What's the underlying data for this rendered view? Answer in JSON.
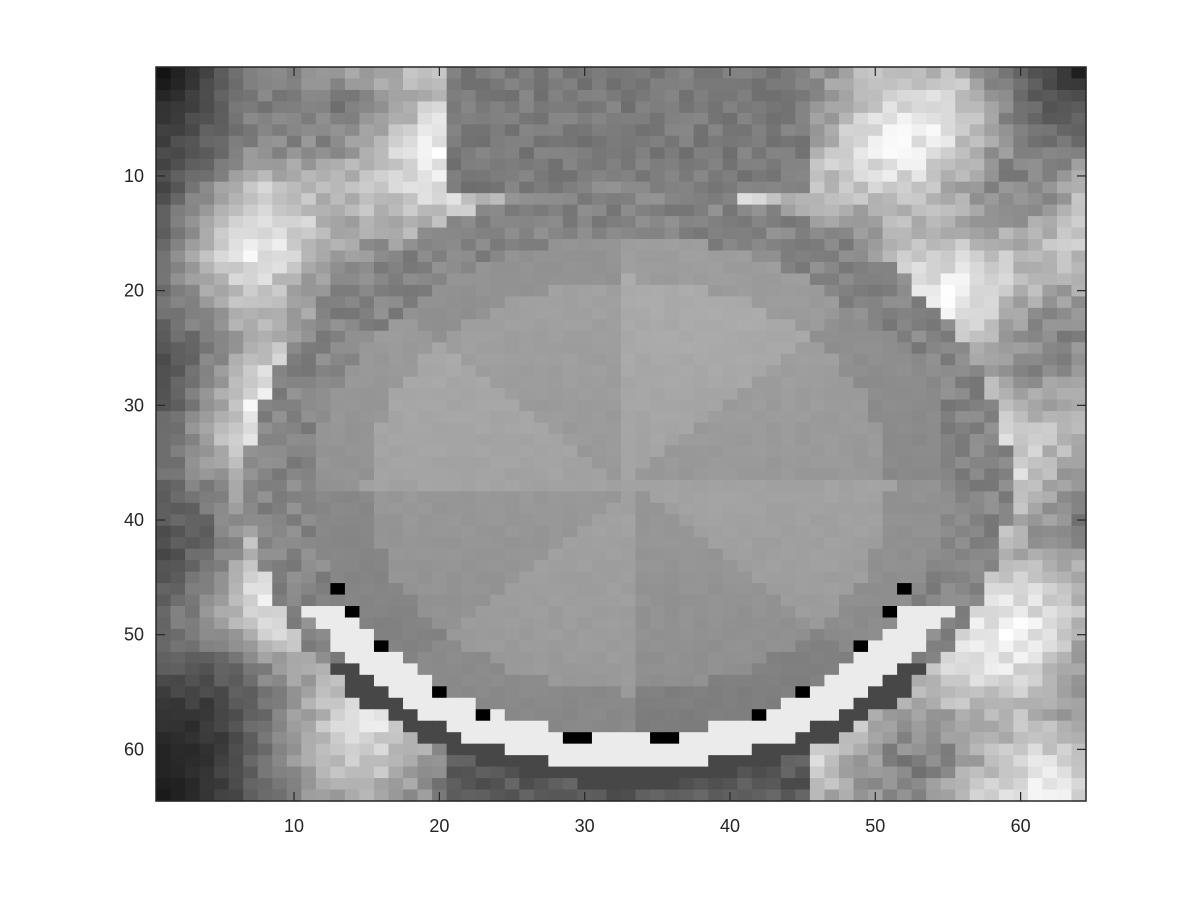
{
  "chart_data": {
    "type": "heatmap",
    "title": "",
    "xlabel": "",
    "ylabel": "",
    "colormap": "gray",
    "grid": false,
    "image_size": {
      "rows": 64,
      "cols": 64
    },
    "xlim": [
      0.5,
      64.5
    ],
    "ylim": [
      0.5,
      64.5
    ],
    "y_direction": "reverse",
    "xticks": [
      10,
      20,
      30,
      40,
      50,
      60
    ],
    "yticks": [
      10,
      20,
      30,
      40,
      50,
      60
    ],
    "xtick_labels": [
      "10",
      "20",
      "30",
      "40",
      "50",
      "60"
    ],
    "ytick_labels": [
      "10",
      "20",
      "30",
      "40",
      "50",
      "60"
    ],
    "colors": {
      "axis": "#262626",
      "background": "#ffffff"
    },
    "structure": {
      "circle_center": [
        33,
        37
      ],
      "circle_radius": 24,
      "ring_width": 2.2,
      "inner_plateau_level": 0.66,
      "ring_level": 0.52,
      "black_markers": [
        [
          13,
          46
        ],
        [
          14,
          48
        ],
        [
          16,
          51
        ],
        [
          20,
          55
        ],
        [
          23,
          57
        ],
        [
          29,
          59
        ],
        [
          30,
          59
        ],
        [
          35,
          59
        ],
        [
          36,
          59
        ],
        [
          42,
          57
        ],
        [
          45,
          55
        ],
        [
          49,
          51
        ],
        [
          51,
          48
        ],
        [
          52,
          46
        ]
      ]
    }
  }
}
